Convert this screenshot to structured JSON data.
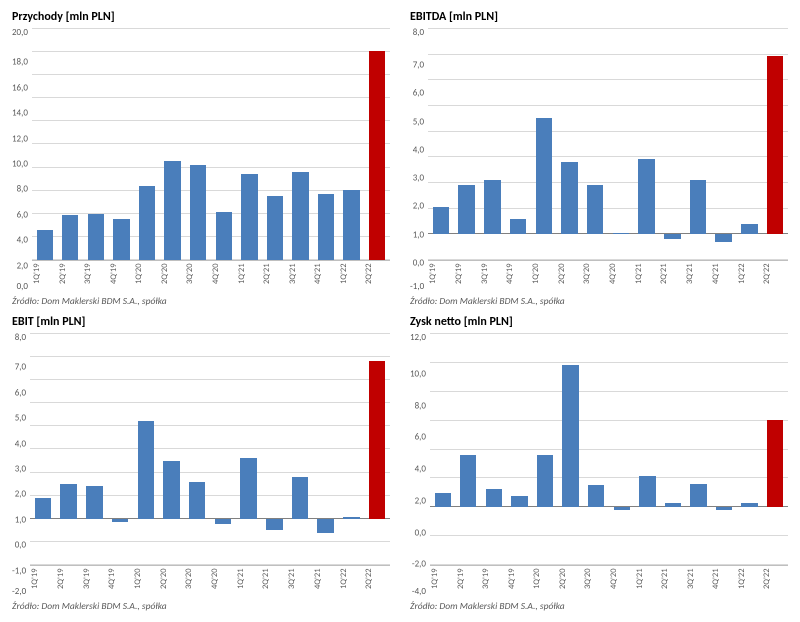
{
  "source_text": "Źródło: Dom Maklerski BDM S.A., spółka",
  "categories": [
    "1Q'19",
    "2Q'19",
    "3Q'19",
    "4Q'19",
    "1Q'20",
    "2Q'20",
    "3Q'20",
    "4Q'20",
    "1Q'21",
    "2Q'21",
    "3Q'21",
    "4Q'21",
    "1Q'22",
    "2Q'22"
  ],
  "colors": {
    "bar_default": "#4a7ebb",
    "bar_highlight": "#c00000",
    "grid": "#d9d9d9",
    "axis": "#bfbfbf",
    "baseline": "#808080",
    "text": "#595959",
    "title": "#000000",
    "background": "#ffffff"
  },
  "fonts": {
    "title_size": 12,
    "title_weight": "bold",
    "tick_size": 9,
    "xlabel_size": 8.5,
    "source_size": 9.5
  },
  "charts": [
    {
      "title": "Przychody [mln PLN]",
      "type": "bar",
      "ylim": [
        0,
        20
      ],
      "ytick_step": 2,
      "yticks_labels": [
        "20,0",
        "18,0",
        "16,0",
        "14,0",
        "12,0",
        "10,0",
        "8,0",
        "6,0",
        "4,0",
        "2,0",
        "0,0"
      ],
      "values": [
        2.6,
        3.9,
        4.0,
        3.5,
        6.4,
        8.5,
        8.2,
        4.1,
        7.4,
        5.5,
        7.6,
        5.7,
        6.0,
        18.0
      ],
      "highlight_index": 13,
      "bar_width": 0.64
    },
    {
      "title": "EBITDA [mln PLN]",
      "type": "bar",
      "ylim": [
        -1,
        8
      ],
      "ytick_step": 1,
      "yticks_labels": [
        "8,0",
        "7,0",
        "6,0",
        "5,0",
        "4,0",
        "3,0",
        "2,0",
        "1,0",
        "0,0",
        "-1,0"
      ],
      "values": [
        1.05,
        1.9,
        2.1,
        0.6,
        4.5,
        2.8,
        1.9,
        0.05,
        2.9,
        -0.2,
        2.1,
        -0.3,
        0.4,
        6.9
      ],
      "highlight_index": 13,
      "bar_width": 0.64
    },
    {
      "title": "EBIT [mln PLN]",
      "type": "bar",
      "ylim": [
        -2,
        8
      ],
      "ytick_step": 1,
      "yticks_labels": [
        "8,0",
        "7,0",
        "6,0",
        "5,0",
        "4,0",
        "3,0",
        "2,0",
        "1,0",
        "0,0",
        "-1,0",
        "-2,0"
      ],
      "values": [
        0.9,
        1.5,
        1.4,
        -0.15,
        4.2,
        2.5,
        1.6,
        -0.25,
        2.6,
        -0.5,
        1.8,
        -0.6,
        0.05,
        6.8
      ],
      "highlight_index": 13,
      "bar_width": 0.64
    },
    {
      "title": "Zysk netto [mln PLN]",
      "type": "bar",
      "ylim": [
        -4,
        12
      ],
      "ytick_step": 2,
      "yticks_labels": [
        "12,0",
        "10,0",
        "8,0",
        "6,0",
        "4,0",
        "2,0",
        "0,0",
        "-2,0",
        "-4,0"
      ],
      "values": [
        0.95,
        3.6,
        1.25,
        0.75,
        3.6,
        9.8,
        1.5,
        -0.2,
        2.15,
        0.3,
        1.6,
        -0.2,
        0.3,
        6.0
      ],
      "highlight_index": 13,
      "bar_width": 0.64
    }
  ]
}
